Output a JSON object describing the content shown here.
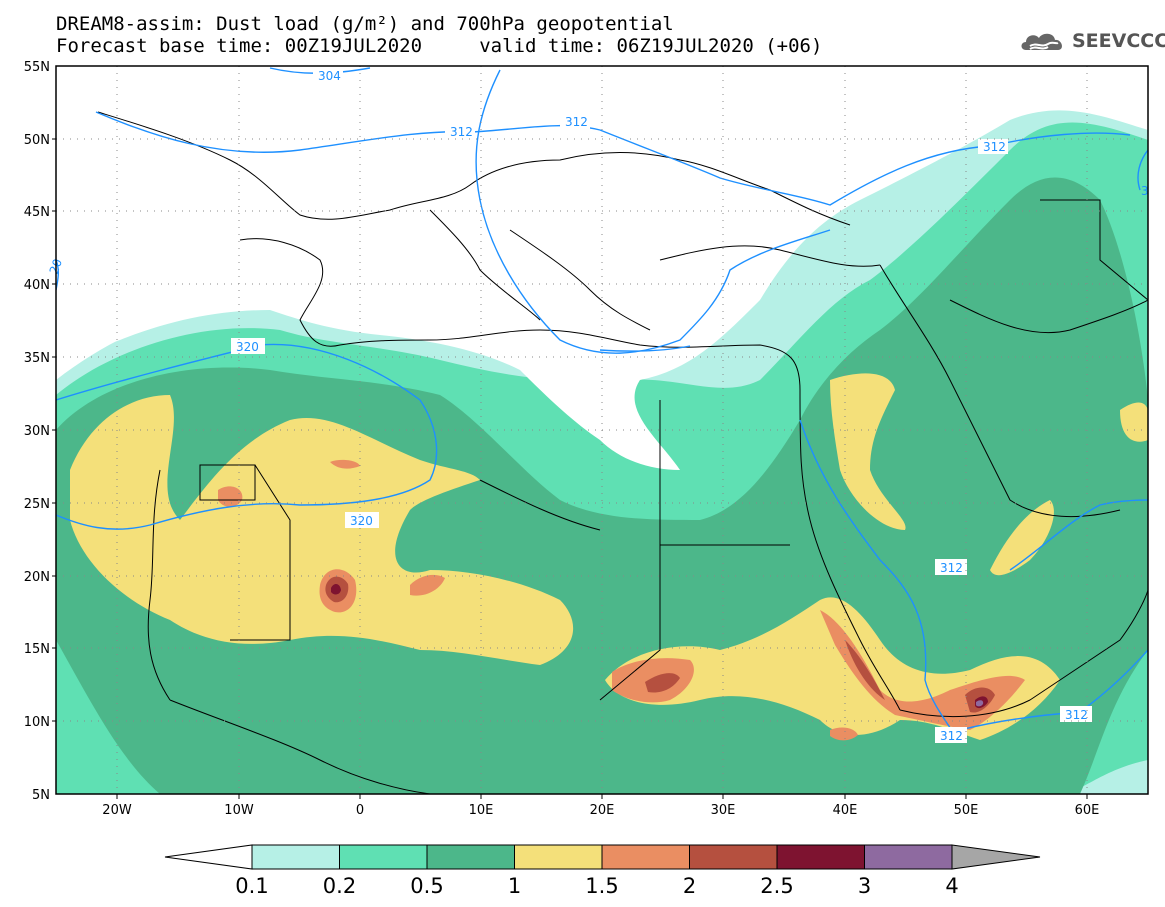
{
  "header": {
    "title_line1": "DREAM8-assim: Dust load (g/m²) and 700hPa geopotential",
    "title_line2": "Forecast base time: 00Z19JUL2020     valid time: 06Z19JUL2020 (+06)"
  },
  "logo": {
    "text": "SEEVCCC",
    "icon": "cloud-icon"
  },
  "axes": {
    "lat_labels": [
      "55N",
      "50N",
      "45N",
      "40N",
      "35N",
      "30N",
      "25N",
      "20N",
      "15N",
      "10N",
      "5N"
    ],
    "lon_labels": [
      "20W",
      "10W",
      "0",
      "10E",
      "20E",
      "30E",
      "40E",
      "50E",
      "60E"
    ]
  },
  "geopotential_labels": [
    {
      "text": "304"
    },
    {
      "text": "312"
    },
    {
      "text": "312"
    },
    {
      "text": "312"
    },
    {
      "text": "320"
    },
    {
      "text": "320"
    },
    {
      "text": "312"
    },
    {
      "text": "312"
    },
    {
      "text": "312"
    },
    {
      "text": "20"
    },
    {
      "text": "3"
    }
  ],
  "colorbar": {
    "labels": [
      "0.1",
      "0.2",
      "0.5",
      "1",
      "1.5",
      "2",
      "2.5",
      "3",
      "4"
    ],
    "colors": [
      "#b6f0e6",
      "#5fe0b3",
      "#4cb78a",
      "#f4e07a",
      "#ea8e62",
      "#b5503f",
      "#7e1330",
      "#8e6aa0"
    ],
    "under_color": "#ffffff",
    "over_color": "#a6a6a6"
  },
  "colors": {
    "contour": "#1e90ff",
    "land_line": "#000000",
    "background": "#ffffff"
  }
}
